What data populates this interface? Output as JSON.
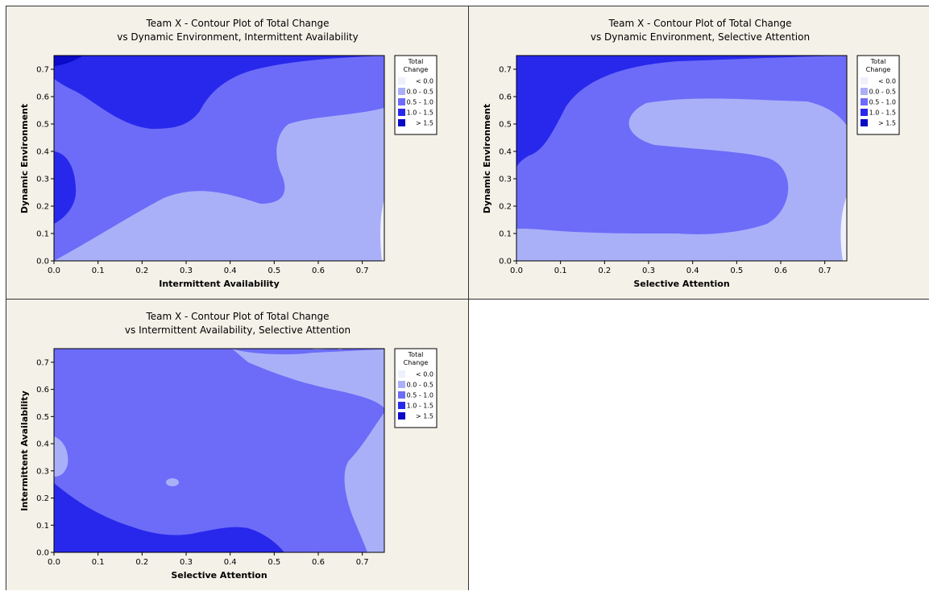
{
  "colors": {
    "lt0": "#eef0fb",
    "b0_05": "#aab0f8",
    "b05_10": "#6c6cf8",
    "b10_15": "#2828ec",
    "gt15": "#0a0ac8"
  },
  "chart_data": [
    {
      "type": "contour",
      "title": [
        "Team X - Contour Plot of Total Change",
        "vs Dynamic Environment, Intermittent Availability"
      ],
      "xlabel": "Intermittent Availability",
      "ylabel": "Dynamic Environment",
      "xlim": [
        0,
        0.75
      ],
      "ylim": [
        0,
        0.75
      ],
      "xticks": [
        "0.0",
        "0.1",
        "0.2",
        "0.3",
        "0.4",
        "0.5",
        "0.6",
        "0.7"
      ],
      "yticks": [
        "0.0",
        "0.1",
        "0.2",
        "0.3",
        "0.4",
        "0.5",
        "0.6",
        "0.7"
      ],
      "legend": {
        "title": [
          "Total",
          "Change"
        ],
        "entries": [
          {
            "range": "< 0.0",
            "color": "#eef0fb"
          },
          {
            "range": "0.0 - 0.5",
            "color": "#aab0f8"
          },
          {
            "range": "0.5 - 1.0",
            "color": "#6c6cf8"
          },
          {
            "range": "1.0 - 1.5",
            "color": "#2828ec"
          },
          {
            "range": "> 1.5",
            "color": "#0a0ac8"
          }
        ]
      }
    },
    {
      "type": "contour",
      "title": [
        "Team X - Contour Plot of Total Change",
        "vs Dynamic Environment, Selective Attention"
      ],
      "xlabel": "Selective Attention",
      "ylabel": "Dynamic Environment",
      "xlim": [
        0,
        0.75
      ],
      "ylim": [
        0,
        0.75
      ],
      "xticks": [
        "0.0",
        "0.1",
        "0.2",
        "0.3",
        "0.4",
        "0.5",
        "0.6",
        "0.7"
      ],
      "yticks": [
        "0.0",
        "0.1",
        "0.2",
        "0.3",
        "0.4",
        "0.5",
        "0.6",
        "0.7"
      ],
      "legend": {
        "title": [
          "Total",
          "Change"
        ],
        "entries": [
          {
            "range": "< 0.0",
            "color": "#eef0fb"
          },
          {
            "range": "0.0 - 0.5",
            "color": "#aab0f8"
          },
          {
            "range": "0.5 - 1.0",
            "color": "#6c6cf8"
          },
          {
            "range": "1.0 - 1.5",
            "color": "#2828ec"
          },
          {
            "range": "> 1.5",
            "color": "#0a0ac8"
          }
        ]
      }
    },
    {
      "type": "contour",
      "title": [
        "Team X - Contour Plot of Total Change",
        "vs Intermittent Availability, Selective Attention"
      ],
      "xlabel": "Selective Attention",
      "ylabel": "Intermittent Availability",
      "xlim": [
        0,
        0.75
      ],
      "ylim": [
        0,
        0.75
      ],
      "xticks": [
        "0.0",
        "0.1",
        "0.2",
        "0.3",
        "0.4",
        "0.5",
        "0.6",
        "0.7"
      ],
      "yticks": [
        "0.0",
        "0.1",
        "0.2",
        "0.3",
        "0.4",
        "0.5",
        "0.6",
        "0.7"
      ],
      "legend": {
        "title": [
          "Total",
          "Change"
        ],
        "entries": [
          {
            "range": "< 0.0",
            "color": "#eef0fb"
          },
          {
            "range": "0.0 - 0.5",
            "color": "#aab0f8"
          },
          {
            "range": "0.5 - 1.0",
            "color": "#6c6cf8"
          },
          {
            "range": "1.0 - 1.5",
            "color": "#2828ec"
          },
          {
            "range": "> 1.5",
            "color": "#0a0ac8"
          }
        ]
      }
    }
  ]
}
